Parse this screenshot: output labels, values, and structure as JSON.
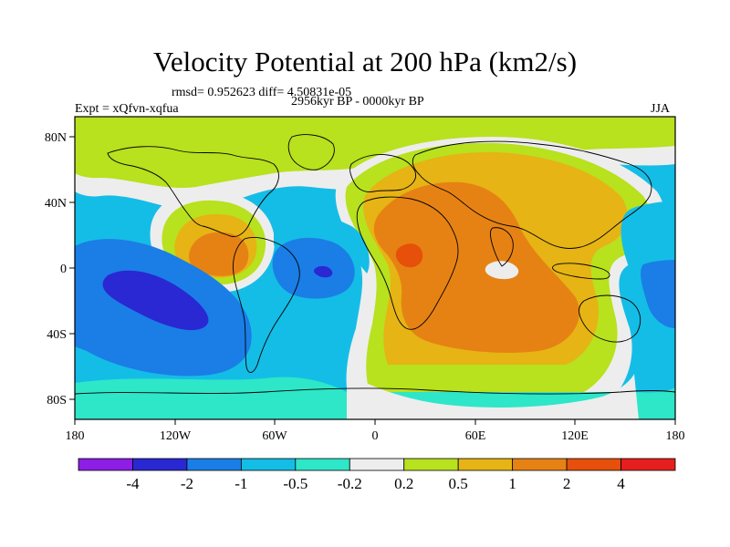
{
  "title": "Velocity Potential at 200 hPa (km2/s)",
  "stats": "rmsd= 0.952623 diff= 4.50831e-05",
  "experiment": "Expt = xQfvn-xqfua",
  "period": "2956kyr BP - 0000kyr BP",
  "season": "JJA",
  "lon_ticks": [
    "180",
    "120W",
    "60W",
    "0",
    "60E",
    "120E",
    "180"
  ],
  "lat_ticks": [
    "80N",
    "40N",
    "0",
    "40S",
    "80S"
  ],
  "colorbar": {
    "labels": [
      "-4",
      "-2",
      "-1",
      "-0.5",
      "-0.2",
      "0.2",
      "0.5",
      "1",
      "2",
      "4"
    ],
    "colors": [
      "#8c1ee6",
      "#2a28d2",
      "#1a7ee6",
      "#14bde6",
      "#2ee6c8",
      "#ededed",
      "#b8e11e",
      "#e6b414",
      "#e68214",
      "#e6500a",
      "#e61e1e"
    ]
  }
}
